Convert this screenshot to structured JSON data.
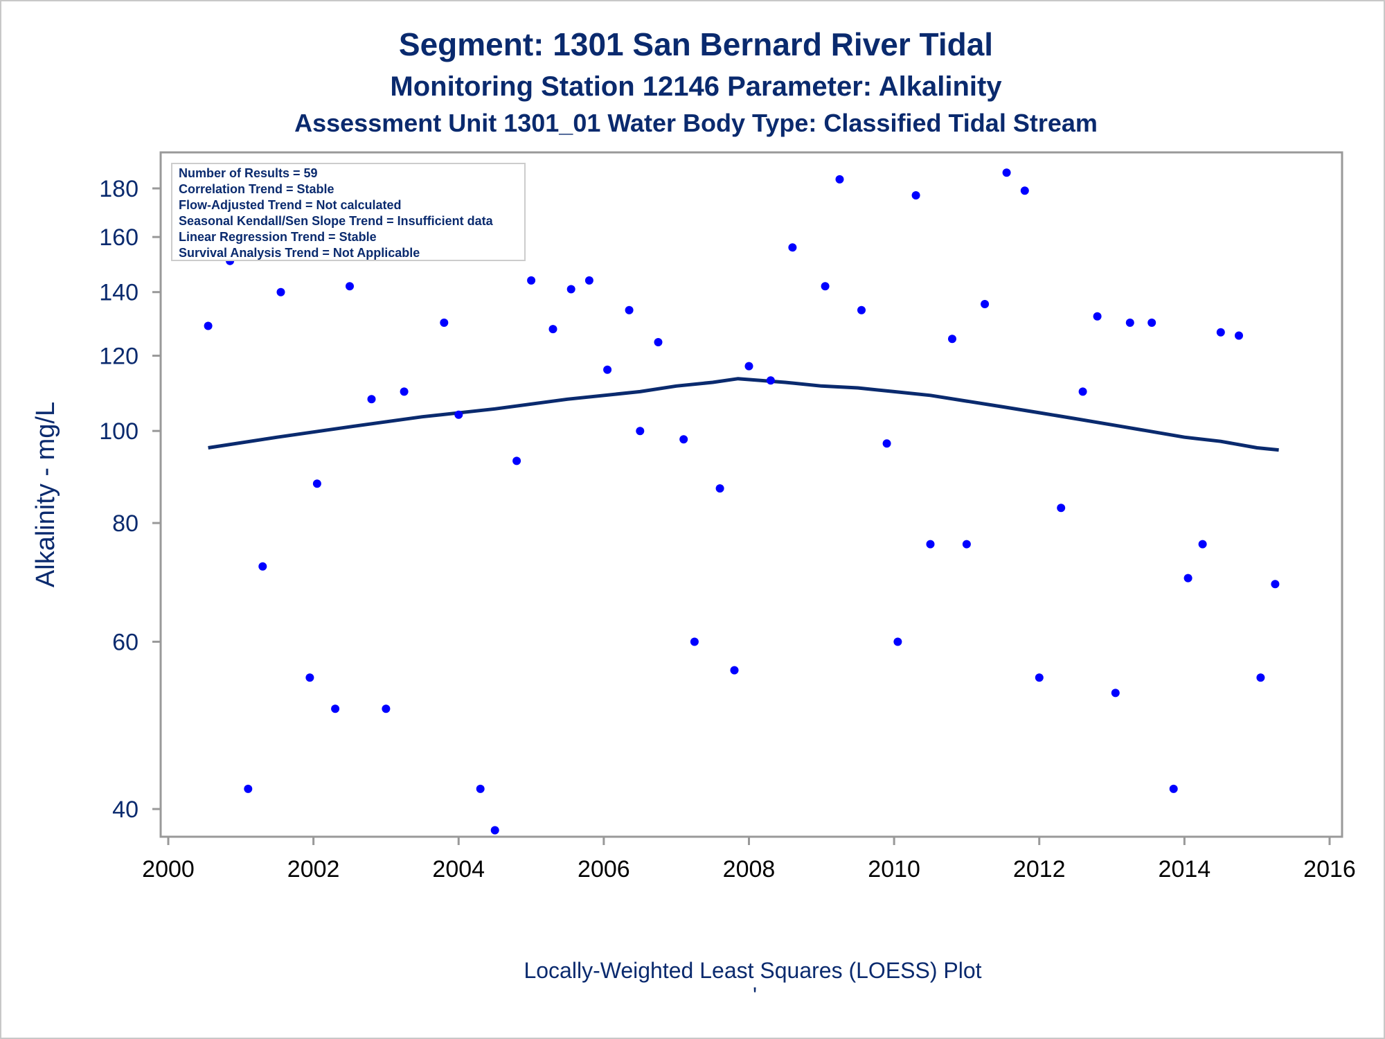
{
  "titles": {
    "line1": "Segment: 1301  San Bernard River Tidal",
    "line2": "Monitoring Station 12146 Parameter: Alkalinity",
    "line3": "Assessment Unit 1301_01   Water Body Type: Classified Tidal Stream"
  },
  "stats_box": [
    "Number of Results = 59",
    "Correlation Trend = Stable",
    "Flow-Adjusted Trend = Not calculated",
    "Seasonal Kendall/Sen Slope Trend = Insufficient data",
    "Linear Regression Trend = Stable",
    "Survival Analysis Trend = Not Applicable"
  ],
  "footnote": "Locally-Weighted Least Squares (LOESS) Plot",
  "footnote_mark": "'",
  "colors": {
    "text": "#0a2a6e",
    "points": "#0000ff",
    "line": "#0a2a6e",
    "frame": "#999999"
  },
  "chart_data": {
    "type": "scatter",
    "title": "Segment: 1301  San Bernard River Tidal",
    "subtitle": [
      "Monitoring Station 12146 Parameter: Alkalinity",
      "Assessment Unit 1301_01   Water Body Type: Classified Tidal Stream"
    ],
    "xlabel": "",
    "ylabel": "Alkalinity - mg/L",
    "xlim": [
      2000,
      2016
    ],
    "ylim": [
      38,
      190
    ],
    "yscale": "log",
    "xticks": [
      2000,
      2002,
      2004,
      2006,
      2008,
      2010,
      2012,
      2014,
      2016
    ],
    "xtick_labels": [
      "2000",
      "2002",
      "2004",
      "2006",
      "2008",
      "2010",
      "2012",
      "2014",
      "2016"
    ],
    "yticks": [
      40,
      60,
      80,
      100,
      120,
      140,
      160,
      180
    ],
    "ytick_labels": [
      "40",
      "60",
      "80",
      "100",
      "120",
      "140",
      "160",
      "180"
    ],
    "grid": false,
    "legend": "none",
    "series": [
      {
        "type": "scatter",
        "x": [
          2000.55,
          2000.85,
          2001.1,
          2001.3,
          2001.55,
          2001.95,
          2002.05,
          2002.3,
          2002.5,
          2002.8,
          2003.0,
          2003.25,
          2003.5,
          2003.8,
          2004.0,
          2004.3,
          2004.5,
          2004.8,
          2005.0,
          2005.3,
          2005.55,
          2005.8,
          2006.05,
          2006.35,
          2006.5,
          2006.75,
          2007.1,
          2007.25,
          2007.6,
          2007.8,
          2008.0,
          2008.3,
          2008.6,
          2009.05,
          2009.25,
          2009.55,
          2009.9,
          2010.05,
          2010.3,
          2010.5,
          2010.8,
          2011.0,
          2011.25,
          2011.55,
          2011.8,
          2012.0,
          2012.3,
          2012.6,
          2012.8,
          2013.05,
          2013.25,
          2013.55,
          2013.85,
          2014.05,
          2014.25,
          2014.5,
          2014.75,
          2015.05,
          2015.25
        ],
        "y": [
          129,
          151,
          42,
          72,
          140,
          55,
          88,
          51,
          142,
          108,
          51,
          110,
          181,
          130,
          104,
          42,
          38,
          93,
          144,
          128,
          141,
          144,
          116,
          134,
          100,
          124,
          98,
          60,
          87,
          56,
          117,
          113,
          156,
          142,
          184,
          134,
          97,
          60,
          177,
          76,
          125,
          76,
          136,
          187,
          179,
          55,
          83,
          110,
          132,
          53,
          130,
          130,
          42,
          70,
          76,
          127,
          126,
          55,
          69
        ]
      },
      {
        "type": "line",
        "name": "",
        "x": [
          2000.55,
          2001.5,
          2002.5,
          2003.5,
          2004.5,
          2005.5,
          2006.5,
          2007.0,
          2007.5,
          2007.85,
          2008.5,
          2009.0,
          2009.5,
          2010.0,
          2010.5,
          2011.0,
          2011.5,
          2012.0,
          2012.5,
          2013.0,
          2013.5,
          2014.0,
          2014.5,
          2015.0,
          2015.3
        ],
        "y": [
          96,
          98.5,
          101,
          103.5,
          105.5,
          108,
          110,
          111.5,
          112.5,
          113.5,
          112.5,
          111.5,
          111,
          110,
          109,
          107.5,
          106,
          104.5,
          103,
          101.5,
          100,
          98.5,
          97.5,
          96,
          95.5
        ]
      }
    ]
  }
}
